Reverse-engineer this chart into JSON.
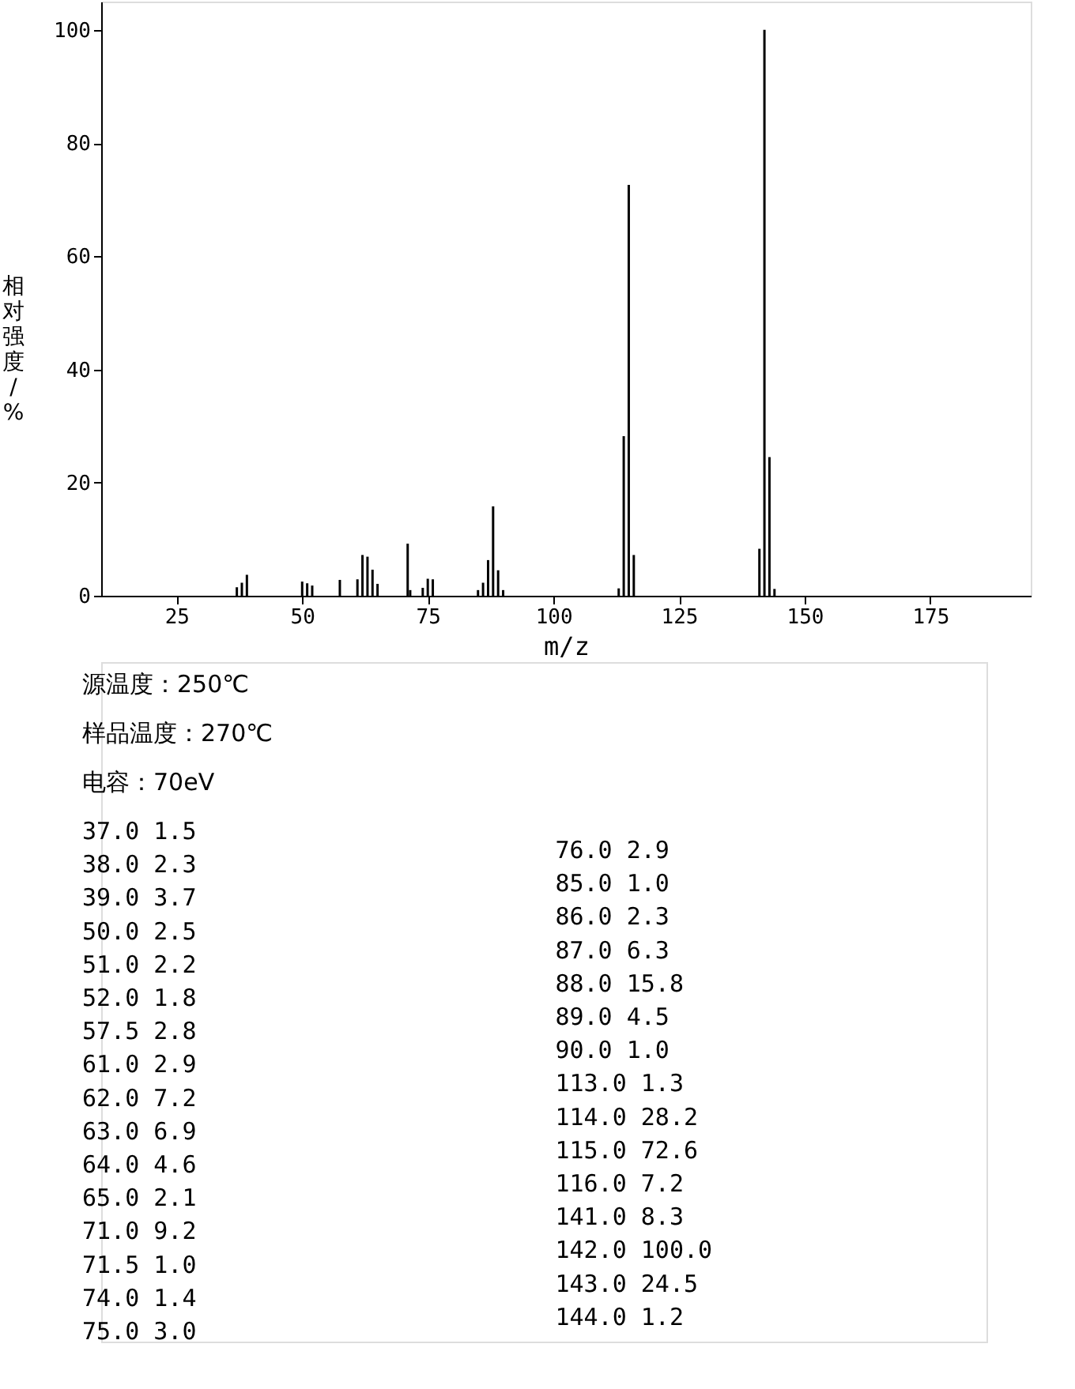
{
  "chart_data": {
    "type": "bar",
    "xlabel": "m/z",
    "ylabel": "相对强度/%",
    "x": [
      37.0,
      38.0,
      39.0,
      50.0,
      51.0,
      52.0,
      57.5,
      61.0,
      62.0,
      63.0,
      64.0,
      65.0,
      71.0,
      71.5,
      74.0,
      75.0,
      76.0,
      85.0,
      86.0,
      87.0,
      88.0,
      89.0,
      90.0,
      113.0,
      114.0,
      115.0,
      116.0,
      141.0,
      142.0,
      143.0,
      144.0
    ],
    "values": [
      1.5,
      2.3,
      3.7,
      2.5,
      2.2,
      1.8,
      2.8,
      2.9,
      7.2,
      6.9,
      4.6,
      2.1,
      9.2,
      1.0,
      1.4,
      3.0,
      2.9,
      1.0,
      2.3,
      6.3,
      15.8,
      4.5,
      1.0,
      1.3,
      28.2,
      72.6,
      7.2,
      8.3,
      100.0,
      24.5,
      1.2
    ],
    "color": "#000000",
    "xlim": [
      10,
      195
    ],
    "xticks": [
      25,
      50,
      75,
      100,
      125,
      150,
      175
    ],
    "ylim": [
      0,
      105
    ],
    "yticks": [
      0,
      20,
      40,
      60,
      80,
      100
    ],
    "grid": false,
    "annotations": [
      "源温度：250℃",
      "样品温度：270℃",
      "电容：70eV",
      "37.0        1.5",
      "38.0        2.3",
      "39.0        3.7",
      "50.0        2.5",
      "51.0        2.2",
      "52.0        1.8",
      "57.5        2.8",
      "61.0        2.9",
      "62.0        7.2",
      "63.0        6.9",
      "64.0        4.6",
      "65.0        2.1",
      "71.0        9.2",
      "71.5        1.0",
      "74.0        1.4",
      "75.0        3.0",
      " 76.0        2.9",
      " 85.0        1.0",
      " 86.0        2.3",
      " 87.0        6.3",
      " 88.0       15.8",
      " 89.0        4.5",
      " 90.0        1.0",
      "113.0        1.3",
      "114.0       28.2",
      "115.0       72.6",
      "116.0        7.2",
      "141.0        8.3",
      "142.0      100.0",
      "143.0       24.5",
      "144.0        1.2"
    ]
  }
}
